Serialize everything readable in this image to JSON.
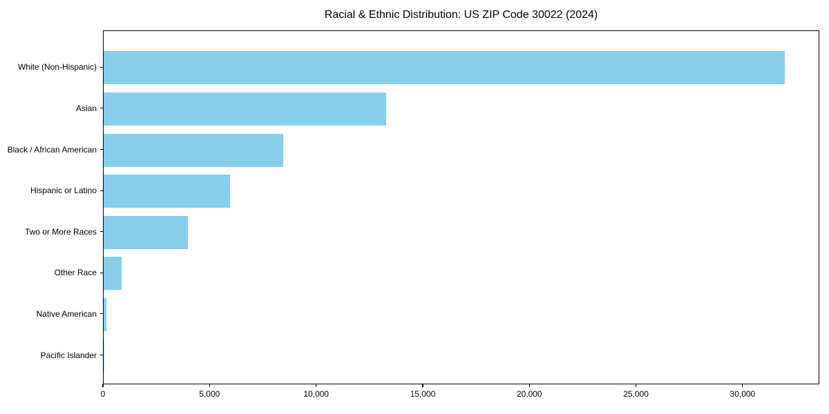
{
  "chart_data": {
    "type": "bar",
    "orientation": "horizontal",
    "title": "Racial & Ethnic Distribution: US ZIP Code 30022 (2024)",
    "xlabel": "",
    "ylabel": "",
    "categories": [
      "White (Non-Hispanic)",
      "Asian",
      "Black / African American",
      "Hispanic or Latino",
      "Two or More Races",
      "Other Race",
      "Native American",
      "Pacific Islander"
    ],
    "values": [
      31930,
      13240,
      8430,
      5920,
      3940,
      830,
      120,
      25
    ],
    "bar_color": "#87CEEB",
    "xlim": [
      0,
      33600
    ],
    "xticks": [
      0,
      5000,
      10000,
      15000,
      20000,
      25000,
      30000
    ],
    "xtick_labels": [
      "0",
      "5,000",
      "10,000",
      "15,000",
      "20,000",
      "25,000",
      "30,000"
    ],
    "grid": false,
    "legend": "none",
    "frame": "full-box",
    "text_color": "#000000"
  }
}
